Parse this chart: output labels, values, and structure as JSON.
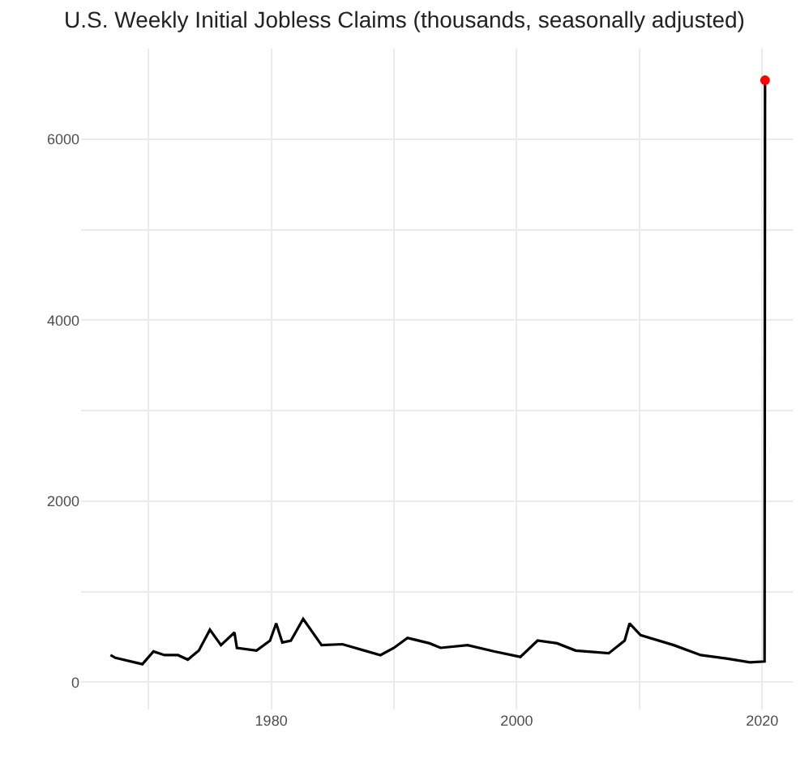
{
  "chart_data": {
    "type": "line",
    "title": "U.S. Weekly Initial Jobless Claims (thousands, seasonally adjusted)",
    "series": [
      {
        "color": "#000000",
        "x": [
          1966.9,
          1967.3,
          1969.5,
          1970.4,
          1971.3,
          1972.4,
          1973.2,
          1974.1,
          1975.0,
          1975.9,
          1977.0,
          1977.2,
          1978.8,
          1979.9,
          1980.4,
          1980.9,
          1981.6,
          1982.6,
          1984.1,
          1985.8,
          1987.6,
          1988.9,
          1990.0,
          1991.1,
          1992.9,
          1993.8,
          1996.0,
          1998.2,
          2000.3,
          2001.7,
          2003.3,
          2004.8,
          2007.5,
          2008.8,
          2009.2,
          2010.1,
          2012.8,
          2015.0,
          2017.2,
          2019.0,
          2020.2,
          2020.24
        ],
        "values": [
          300,
          270,
          200,
          340,
          300,
          300,
          250,
          350,
          580,
          410,
          550,
          380,
          350,
          460,
          650,
          440,
          460,
          700,
          410,
          420,
          350,
          300,
          380,
          490,
          430,
          380,
          410,
          340,
          280,
          460,
          430,
          350,
          320,
          460,
          650,
          520,
          410,
          300,
          260,
          220,
          230,
          6650
        ]
      },
      {
        "type": "scatter",
        "marker": "circle",
        "color": "#ff0000",
        "x": [
          2020.24
        ],
        "values": [
          6650
        ]
      }
    ],
    "xlim": [
      1964.5,
      2022.5
    ],
    "ylim": [
      -300,
      7000
    ],
    "xticks": [
      {
        "value": 1970,
        "label": null
      },
      1980,
      {
        "value": 1990,
        "label": null
      },
      2000,
      {
        "value": 2010,
        "label": null
      },
      2020
    ],
    "yticks": [
      0,
      {
        "value": 1000,
        "label": null
      },
      2000,
      {
        "value": 3000,
        "label": null
      },
      4000,
      {
        "value": 5000,
        "label": null
      },
      6000
    ],
    "grid": true
  }
}
